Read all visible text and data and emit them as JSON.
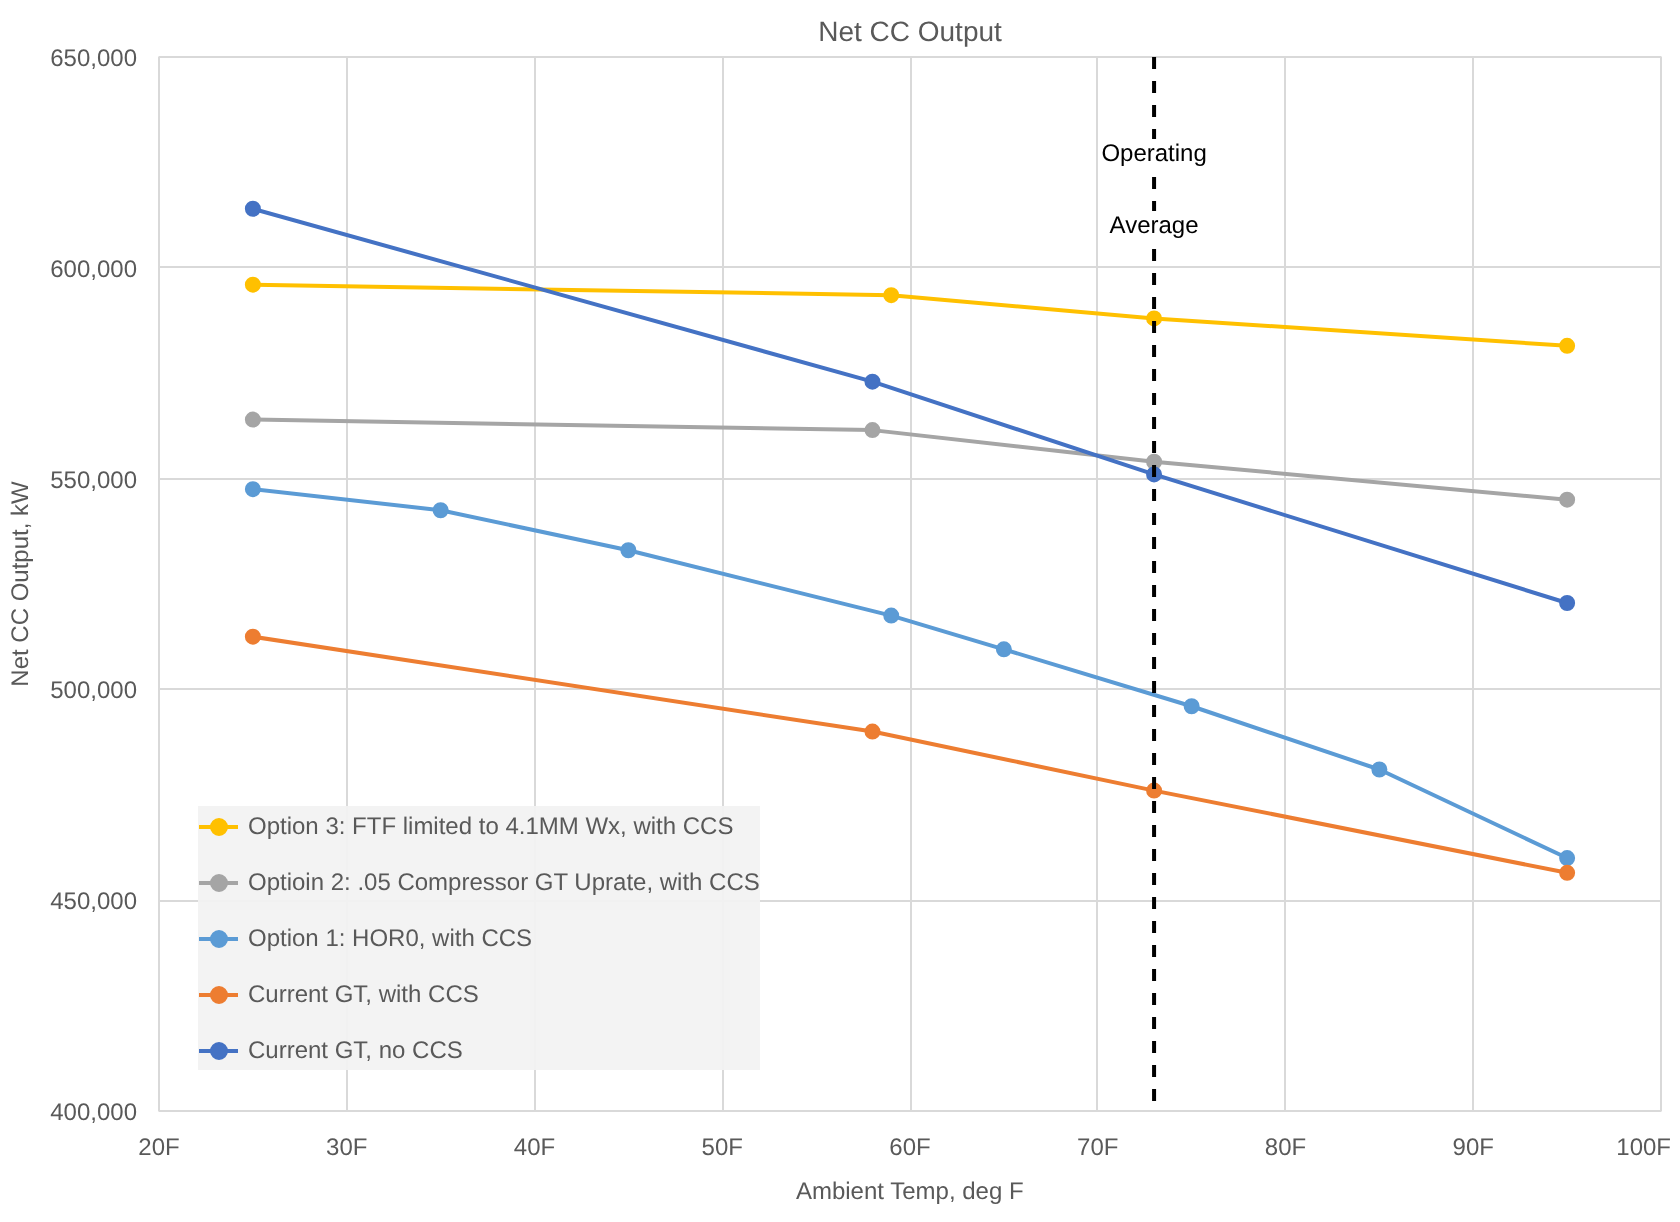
{
  "chart_data": {
    "type": "line",
    "title": "Net CC Output",
    "xlabel": "Ambient Temp, deg F",
    "ylabel": "Net CC Output, kW",
    "xlim": [
      20,
      100
    ],
    "xticks": [
      {
        "value": 20,
        "label": "20F"
      },
      {
        "value": 30,
        "label": "30F"
      },
      {
        "value": 40,
        "label": "40F"
      },
      {
        "value": 50,
        "label": "50F"
      },
      {
        "value": 60,
        "label": "60F"
      },
      {
        "value": 70,
        "label": "70F"
      },
      {
        "value": 80,
        "label": "80F"
      },
      {
        "value": 90,
        "label": "90F"
      },
      {
        "value": 100,
        "label": "100F"
      }
    ],
    "ylim": [
      400000,
      650000
    ],
    "yticks": [
      {
        "value": 400000,
        "label": "400,000"
      },
      {
        "value": 450000,
        "label": "450,000"
      },
      {
        "value": 500000,
        "label": "500,000"
      },
      {
        "value": 550000,
        "label": "550,000"
      },
      {
        "value": 600000,
        "label": "600,000"
      },
      {
        "value": 650000,
        "label": "650,000"
      }
    ],
    "grid": true,
    "legend": "bottom left",
    "marker": "circle",
    "line_style": "solid",
    "ref_lines": [
      {
        "axis": "x",
        "value": 73,
        "label": "Operating Average",
        "color": "#000000",
        "line_style": "dashed"
      }
    ],
    "series": [
      {
        "name": "Option 3: FTF limited to 4.1MM Wx, with CCS",
        "color": "#ffc000",
        "x": [
          25,
          59,
          73,
          95
        ],
        "values": [
          596000,
          593500,
          588000,
          581500
        ]
      },
      {
        "name": "Optioin 2: .05 Compressor GT Uprate, with CCS",
        "color": "#a5a5a5",
        "x": [
          25,
          58,
          73,
          95
        ],
        "values": [
          564000,
          561500,
          554000,
          545000
        ]
      },
      {
        "name": "Option 1: HOR0, with CCS",
        "color": "#5b9bd5",
        "x": [
          25,
          35,
          45,
          59,
          65,
          75,
          85,
          95
        ],
        "values": [
          547500,
          542500,
          533000,
          517500,
          509500,
          496000,
          481000,
          460000
        ]
      },
      {
        "name": "Current GT, with CCS",
        "color": "#ed7d31",
        "x": [
          25,
          58,
          73,
          95
        ],
        "values": [
          512500,
          490000,
          476000,
          456500
        ]
      },
      {
        "name": "Current GT, no CCS",
        "color": "#4472c4",
        "x": [
          25,
          58,
          73,
          95
        ],
        "values": [
          614000,
          573000,
          551000,
          520500
        ]
      }
    ]
  }
}
